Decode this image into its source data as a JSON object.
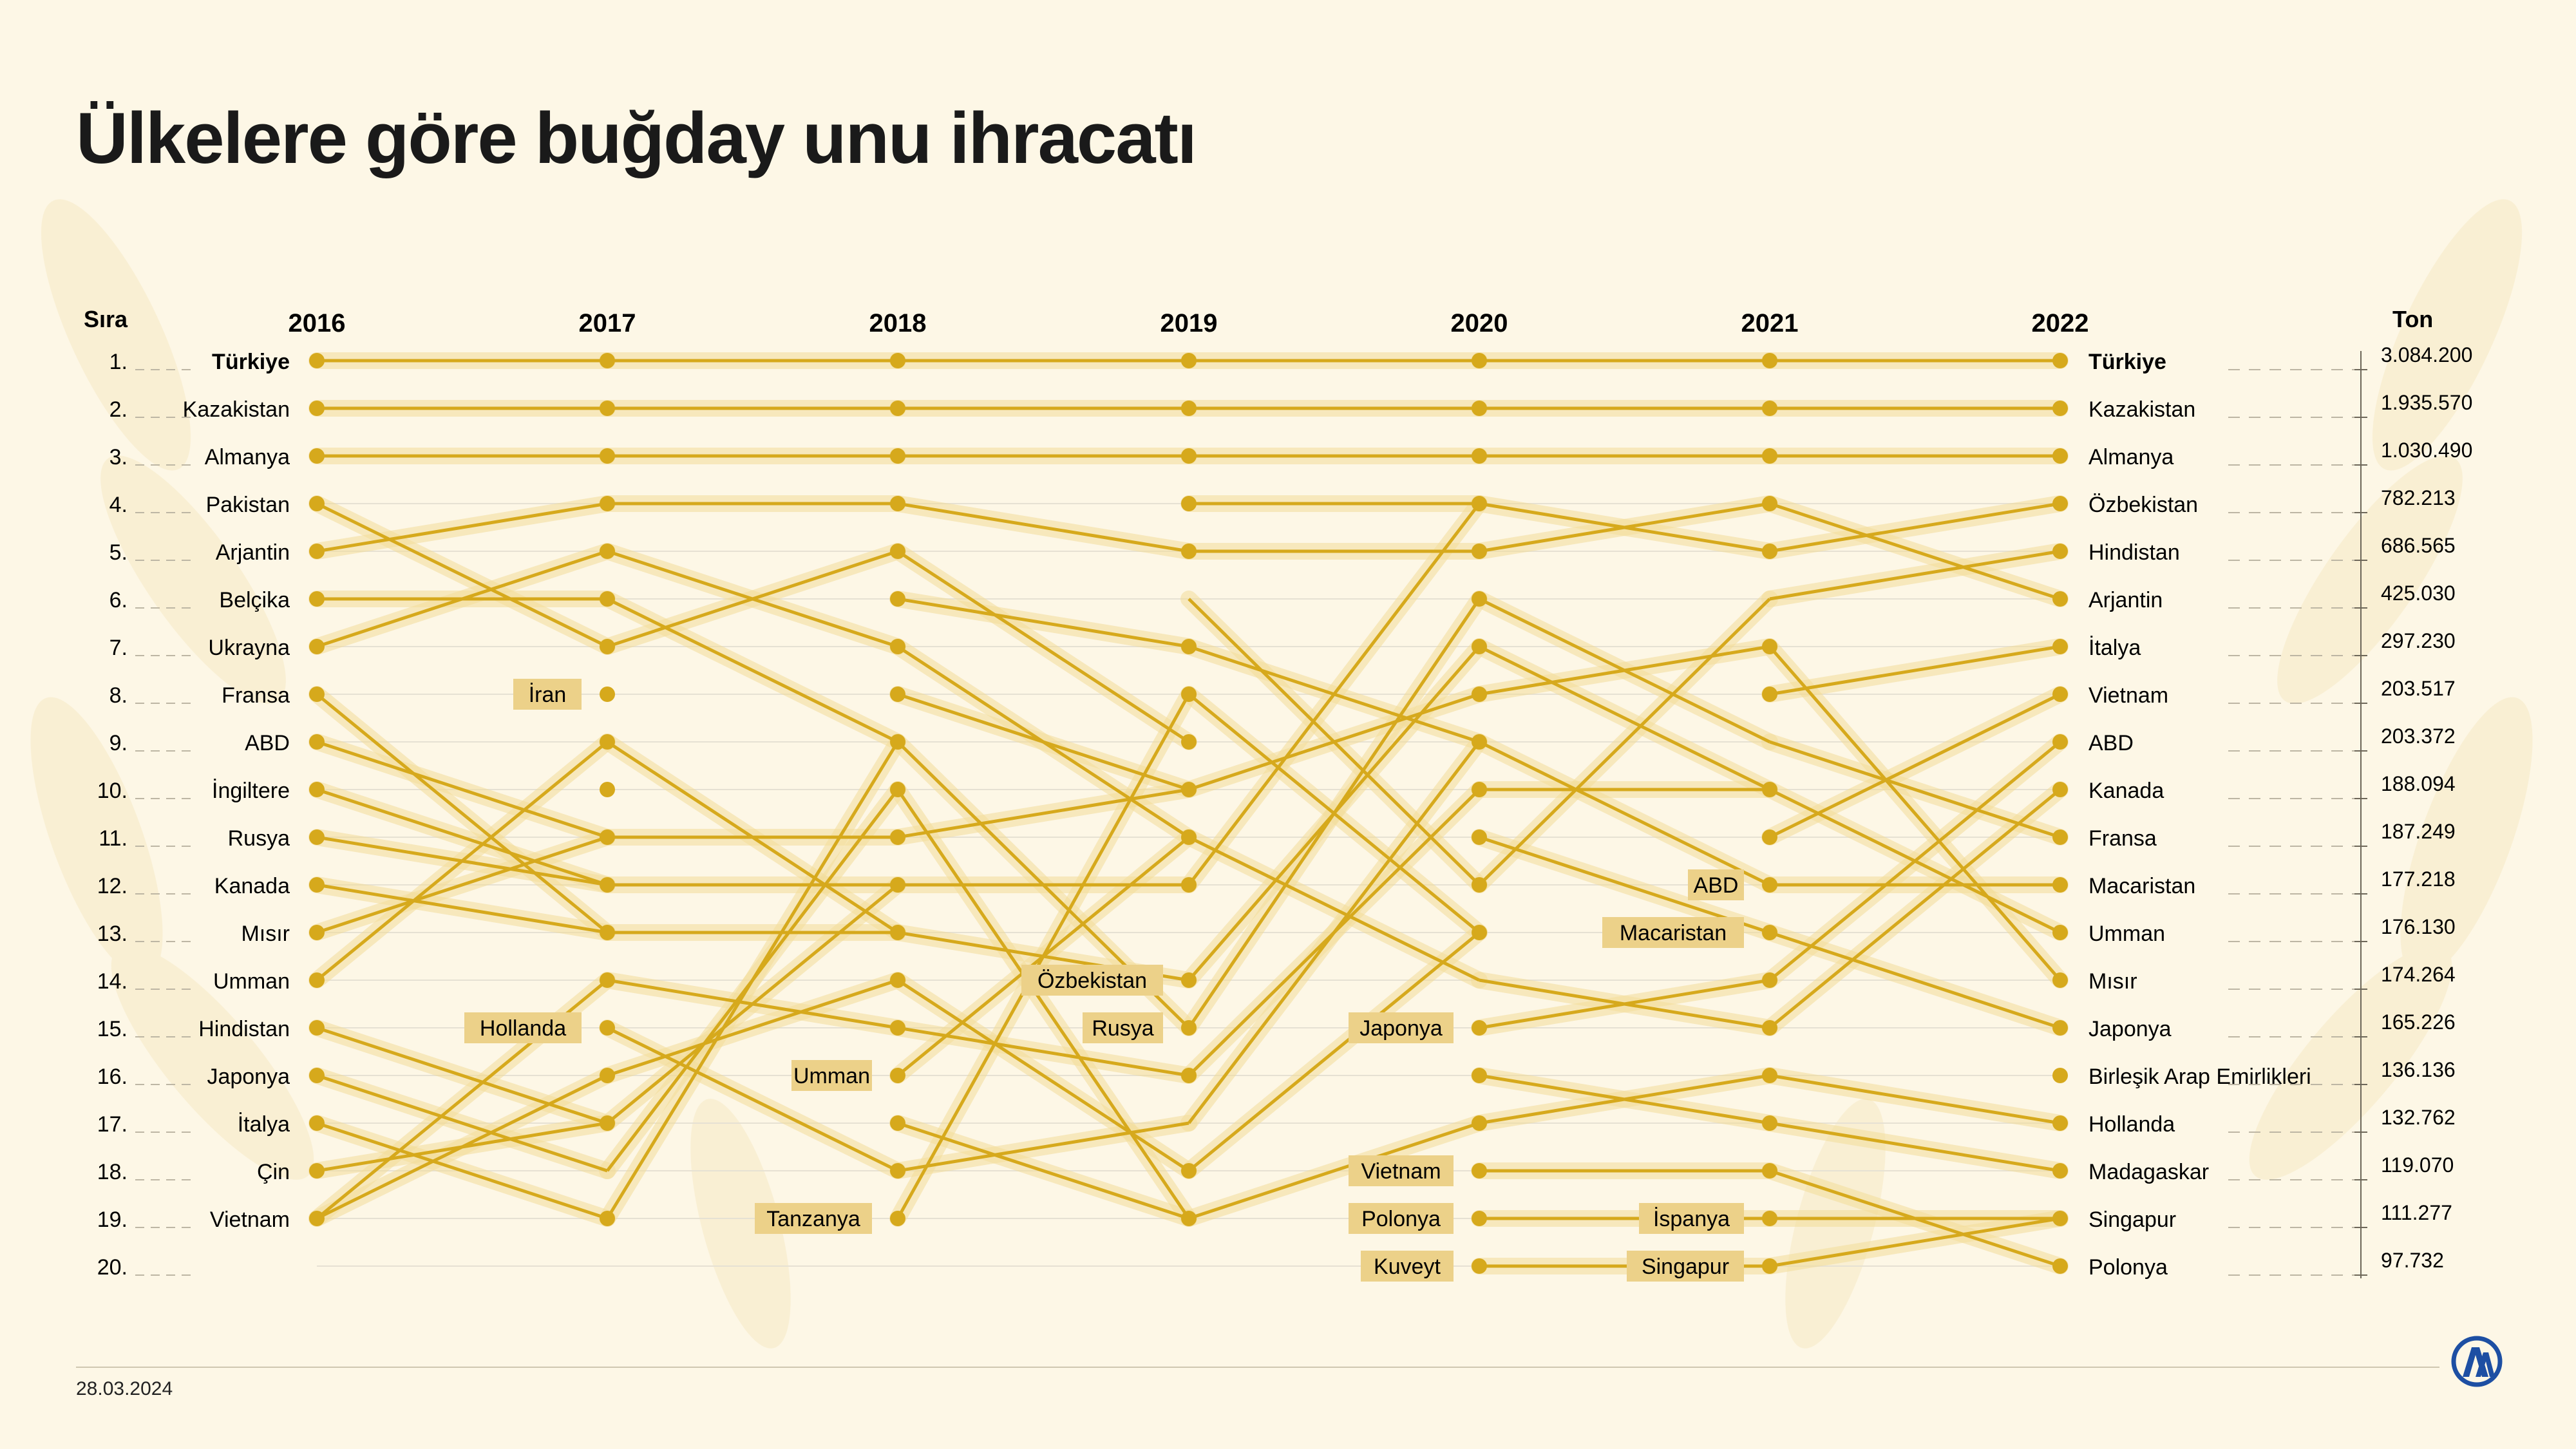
{
  "title": "Ülkelere göre buğday unu ihracatı",
  "date": "28.03.2024",
  "logo_name": "AA",
  "colors": {
    "line": "#d6a91c",
    "highlight": "#f2dc9a",
    "label_bg": "#ecd189",
    "grid": "#e6e1d3"
  },
  "chart_data": {
    "type": "bump",
    "rank_label": "Sıra",
    "value_label": "Ton",
    "years": [
      "2016",
      "2017",
      "2018",
      "2019",
      "2020",
      "2021",
      "2022"
    ],
    "ranks": [
      "1.",
      "2.",
      "3.",
      "4.",
      "5.",
      "6.",
      "7.",
      "8.",
      "9.",
      "10.",
      "11.",
      "12.",
      "13.",
      "14.",
      "15.",
      "16.",
      "17.",
      "18.",
      "19.",
      "20."
    ],
    "countries_2016": [
      "Türkiye",
      "Kazakistan",
      "Almanya",
      "Pakistan",
      "Arjantin",
      "Belçika",
      "Ukrayna",
      "Fransa",
      "ABD",
      "İngiltere",
      "Rusya",
      "Kanada",
      "Mısır",
      "Umman",
      "Hindistan",
      "Japonya",
      "İtalya",
      "Çin",
      "Vietnam"
    ],
    "countries_2022": [
      "Türkiye",
      "Kazakistan",
      "Almanya",
      "Özbekistan",
      "Hindistan",
      "Arjantin",
      "İtalya",
      "Vietnam",
      "ABD",
      "Kanada",
      "Fransa",
      "Macaristan",
      "Umman",
      "Mısır",
      "Japonya",
      "Birleşik Arap Emirlikleri",
      "Hollanda",
      "Madagaskar",
      "Singapur",
      "Polonya"
    ],
    "values_2022_ton": [
      "3.084.200",
      "1.935.570",
      "1.030.490",
      "782.213",
      "686.565",
      "425.030",
      "297.230",
      "203.517",
      "203.372",
      "188.094",
      "187.249",
      "177.218",
      "176.130",
      "174.264",
      "165.226",
      "136.136",
      "132.762",
      "119.070",
      "111.277",
      "97.732"
    ],
    "points": [
      [
        1,
        2,
        3,
        4,
        5,
        6,
        7,
        8,
        9,
        10,
        11,
        12,
        13,
        14,
        15,
        16,
        17,
        18,
        19
      ],
      [
        1,
        2,
        3,
        4,
        5,
        6,
        7,
        8,
        9,
        10,
        11,
        12,
        13,
        14,
        15,
        16,
        17,
        19
      ],
      [
        1,
        2,
        3,
        4,
        5,
        6,
        7,
        8,
        9,
        10,
        11,
        12,
        13,
        14,
        15,
        16,
        17,
        18,
        19
      ],
      [
        1,
        2,
        3,
        4,
        5,
        7,
        8,
        9,
        10,
        11,
        12,
        14,
        15,
        16,
        18,
        19
      ],
      [
        1,
        2,
        3,
        4,
        5,
        6,
        7,
        8,
        9,
        10,
        11,
        12,
        13,
        15,
        16,
        17,
        18,
        19,
        20
      ],
      [
        1,
        2,
        3,
        4,
        5,
        7,
        8,
        10,
        11,
        12,
        13,
        14,
        15,
        16,
        17,
        18,
        19,
        20
      ],
      [
        1,
        2,
        3,
        4,
        5,
        6,
        7,
        8,
        9,
        10,
        11,
        12,
        13,
        14,
        15,
        16,
        17,
        18,
        19,
        20
      ]
    ],
    "lines": [
      [
        0,
        1,
        1,
        6,
        1,
        1,
        1
      ],
      [
        0,
        2,
        1,
        6,
        2,
        1,
        2
      ],
      [
        0,
        3,
        1,
        6,
        3,
        1,
        3
      ],
      [
        0,
        4,
        1,
        6,
        4,
        1,
        4
      ],
      [
        0,
        5,
        1,
        6,
        5,
        1,
        5
      ],
      [
        0,
        6,
        1,
        6,
        6,
        1,
        6
      ],
      [
        0,
        7,
        1,
        6,
        7,
        1,
        7
      ],
      [
        0,
        8,
        1,
        6,
        8,
        1,
        8
      ],
      [
        0,
        9,
        1,
        6,
        9,
        1,
        9
      ],
      [
        0,
        10,
        1,
        6,
        10,
        1,
        10
      ],
      [
        0,
        11,
        1,
        6,
        11,
        1,
        11
      ],
      [
        0,
        12,
        1,
        6,
        12,
        1,
        12
      ],
      [
        0,
        13,
        1,
        6,
        13,
        1,
        13
      ],
      [
        0,
        14,
        1,
        6,
        14,
        1,
        14
      ],
      [
        0,
        15,
        1,
        6,
        15,
        1,
        15
      ],
      [
        0,
        16,
        1,
        6,
        16,
        1,
        16
      ],
      [
        0,
        17,
        1,
        6,
        17,
        1,
        17
      ],
      [
        0,
        18,
        1,
        6,
        18,
        1,
        18
      ],
      [
        0,
        19,
        1,
        6,
        19,
        1,
        19
      ],
      [
        0,
        20,
        1,
        6,
        20,
        1,
        20
      ],
      [
        0,
        1,
        1,
        1
      ],
      [
        1,
        1,
        2,
        1
      ],
      [
        2,
        1,
        3,
        1
      ],
      [
        3,
        1,
        4,
        1
      ],
      [
        4,
        1,
        5,
        1
      ],
      [
        5,
        1,
        6,
        1
      ],
      [
        0,
        2,
        1,
        2
      ],
      [
        1,
        2,
        2,
        2
      ],
      [
        2,
        2,
        3,
        2
      ],
      [
        3,
        2,
        4,
        2
      ],
      [
        4,
        2,
        5,
        2
      ],
      [
        5,
        2,
        6,
        2
      ],
      [
        0,
        3,
        1,
        3
      ],
      [
        1,
        3,
        2,
        3
      ],
      [
        2,
        3,
        3,
        3
      ],
      [
        3,
        3,
        4,
        3
      ],
      [
        4,
        3,
        5,
        3
      ],
      [
        5,
        3,
        6,
        3
      ],
      [
        0,
        4,
        1,
        7
      ],
      [
        0,
        5,
        1,
        4
      ],
      [
        0,
        6,
        1,
        6
      ],
      [
        0,
        7,
        1,
        5
      ],
      [
        0,
        8,
        1,
        13
      ],
      [
        0,
        9,
        1,
        11
      ],
      [
        0,
        10,
        1,
        12
      ],
      [
        0,
        11,
        1,
        12
      ],
      [
        0,
        12,
        1,
        13
      ],
      [
        0,
        13,
        1,
        11
      ],
      [
        0,
        14,
        1,
        9
      ],
      [
        0,
        15,
        1,
        17
      ],
      [
        0,
        16,
        1,
        18
      ],
      [
        0,
        17,
        1,
        19
      ],
      [
        0,
        18,
        1,
        17
      ],
      [
        0,
        19,
        1,
        16
      ],
      [
        0,
        19,
        1,
        14
      ],
      [
        1,
        4,
        2,
        4
      ],
      [
        1,
        5,
        2,
        7
      ],
      [
        1,
        6,
        2,
        9
      ],
      [
        1,
        7,
        2,
        5
      ],
      [
        1,
        9,
        2,
        13
      ],
      [
        1,
        11,
        2,
        11
      ],
      [
        1,
        12,
        2,
        12
      ],
      [
        1,
        13,
        2,
        13
      ],
      [
        1,
        14,
        2,
        15
      ],
      [
        1,
        15,
        2,
        18
      ],
      [
        1,
        16,
        2,
        14
      ],
      [
        1,
        17,
        2,
        12
      ],
      [
        1,
        18,
        2,
        10
      ],
      [
        1,
        19,
        2,
        9
      ],
      [
        2,
        4,
        3,
        5
      ],
      [
        2,
        5,
        3,
        9
      ],
      [
        2,
        6,
        3,
        7
      ],
      [
        2,
        7,
        3,
        11
      ],
      [
        2,
        8,
        3,
        10
      ],
      [
        2,
        9,
        3,
        15
      ],
      [
        2,
        10,
        3,
        19
      ],
      [
        2,
        11,
        3,
        10
      ],
      [
        2,
        12,
        3,
        12
      ],
      [
        2,
        13,
        3,
        14
      ],
      [
        2,
        14,
        3,
        18
      ],
      [
        2,
        15,
        3,
        16
      ],
      [
        2,
        16,
        3,
        11
      ],
      [
        2,
        17,
        3,
        19
      ],
      [
        2,
        18,
        3,
        17
      ],
      [
        2,
        19,
        3,
        8
      ],
      [
        3,
        4,
        4,
        4
      ],
      [
        3,
        5,
        4,
        5
      ],
      [
        3,
        6,
        4,
        12
      ],
      [
        3,
        7,
        4,
        9
      ],
      [
        3,
        8,
        4,
        13
      ],
      [
        3,
        10,
        4,
        8
      ],
      [
        3,
        11,
        4,
        14
      ],
      [
        3,
        12,
        4,
        4
      ],
      [
        3,
        14,
        4,
        7
      ],
      [
        3,
        15,
        4,
        6
      ],
      [
        3,
        16,
        4,
        10
      ],
      [
        3,
        17,
        4,
        9
      ],
      [
        3,
        18,
        4,
        13
      ],
      [
        3,
        19,
        4,
        17
      ],
      [
        4,
        4,
        5,
        5
      ],
      [
        4,
        5,
        5,
        4
      ],
      [
        4,
        6,
        5,
        9
      ],
      [
        4,
        7,
        5,
        10
      ],
      [
        4,
        8,
        5,
        7
      ],
      [
        4,
        9,
        5,
        12
      ],
      [
        4,
        10,
        5,
        10
      ],
      [
        4,
        11,
        5,
        13
      ],
      [
        4,
        12,
        5,
        6
      ],
      [
        4,
        14,
        5,
        15
      ],
      [
        4,
        15,
        5,
        14
      ],
      [
        4,
        16,
        5,
        17
      ],
      [
        4,
        17,
        5,
        16
      ],
      [
        4,
        18,
        5,
        18
      ],
      [
        4,
        19,
        5,
        19
      ],
      [
        4,
        20,
        5,
        20
      ],
      [
        5,
        4,
        6,
        6
      ],
      [
        5,
        5,
        6,
        4
      ],
      [
        5,
        6,
        6,
        5
      ],
      [
        5,
        7,
        6,
        14
      ],
      [
        5,
        8,
        6,
        7
      ],
      [
        5,
        9,
        6,
        11
      ],
      [
        5,
        10,
        6,
        13
      ],
      [
        5,
        11,
        6,
        8
      ],
      [
        5,
        12,
        6,
        12
      ],
      [
        5,
        13,
        6,
        15
      ],
      [
        5,
        14,
        6,
        9
      ],
      [
        5,
        15,
        6,
        10
      ],
      [
        5,
        16,
        6,
        17
      ],
      [
        5,
        17,
        6,
        18
      ],
      [
        5,
        18,
        6,
        20
      ],
      [
        5,
        19,
        6,
        19
      ],
      [
        5,
        20,
        6,
        19
      ]
    ],
    "labels": [
      {
        "col": 1,
        "rank": 8,
        "text": "İran"
      },
      {
        "col": 1,
        "rank": 15,
        "text": "Hollanda"
      },
      {
        "col": 2,
        "rank": 16,
        "text": "Umman"
      },
      {
        "col": 2,
        "rank": 19,
        "text": "Tanzanya"
      },
      {
        "col": 3,
        "rank": 14,
        "text": "Özbekistan"
      },
      {
        "col": 3,
        "rank": 15,
        "text": "Rusya"
      },
      {
        "col": 4,
        "rank": 15,
        "text": "Japonya"
      },
      {
        "col": 4,
        "rank": 18,
        "text": "Vietnam"
      },
      {
        "col": 4,
        "rank": 19,
        "text": "Polonya"
      },
      {
        "col": 4,
        "rank": 20,
        "text": "Kuveyt"
      },
      {
        "col": 5,
        "rank": 12,
        "text": "ABD"
      },
      {
        "col": 5,
        "rank": 13,
        "text": "Macaristan"
      },
      {
        "col": 5,
        "rank": 19,
        "text": "İspanya"
      },
      {
        "col": 5,
        "rank": 20,
        "text": "Singapur"
      }
    ]
  }
}
